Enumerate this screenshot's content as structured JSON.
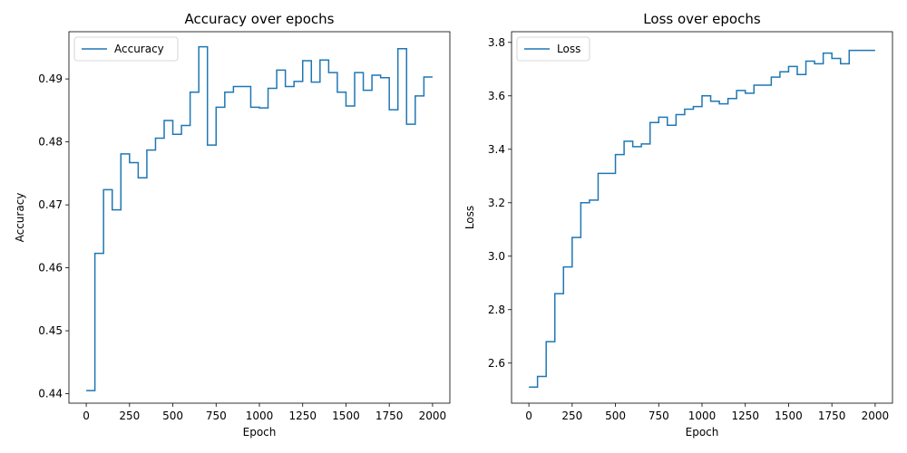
{
  "chart_data": [
    {
      "type": "line",
      "title": "Accuracy over epochs",
      "xlabel": "Epoch",
      "ylabel": "Accuracy",
      "xlim": [
        -100,
        2100
      ],
      "ylim": [
        0.4385,
        0.4975
      ],
      "xticks": [
        0,
        250,
        500,
        750,
        1000,
        1250,
        1500,
        1750,
        2000
      ],
      "yticks": [
        0.44,
        0.45,
        0.46,
        0.47,
        0.48,
        0.49
      ],
      "ytick_labels": [
        "0.44",
        "0.45",
        "0.46",
        "0.47",
        "0.48",
        "0.49"
      ],
      "legend": {
        "placement": "top-left"
      },
      "color": "#1f77b4",
      "series": [
        {
          "name": "Accuracy",
          "x": [
            0,
            50,
            100,
            150,
            200,
            250,
            300,
            350,
            400,
            450,
            500,
            550,
            600,
            650,
            700,
            750,
            800,
            850,
            900,
            950,
            1000,
            1050,
            1100,
            1150,
            1200,
            1250,
            1300,
            1350,
            1400,
            1450,
            1500,
            1550,
            1600,
            1650,
            1700,
            1750,
            1800,
            1850,
            1900,
            1950,
            2000
          ],
          "values": [
            0.4405,
            0.4623,
            0.4724,
            0.4692,
            0.4781,
            0.4767,
            0.4743,
            0.4787,
            0.4806,
            0.4834,
            0.4812,
            0.4826,
            0.4879,
            0.4951,
            0.4795,
            0.4855,
            0.4879,
            0.4888,
            0.4888,
            0.4855,
            0.4854,
            0.4885,
            0.4914,
            0.4888,
            0.4896,
            0.4929,
            0.4895,
            0.493,
            0.491,
            0.4879,
            0.4857,
            0.491,
            0.4882,
            0.4906,
            0.4902,
            0.4851,
            0.4948,
            0.4828,
            0.4873,
            0.4903,
            0.4903
          ]
        }
      ]
    },
    {
      "type": "line",
      "title": "Loss over epochs",
      "xlabel": "Epoch",
      "ylabel": "Loss",
      "xlim": [
        -100,
        2100
      ],
      "ylim": [
        2.45,
        3.84
      ],
      "xticks": [
        0,
        250,
        500,
        750,
        1000,
        1250,
        1500,
        1750,
        2000
      ],
      "yticks": [
        2.6,
        2.8,
        3.0,
        3.2,
        3.4,
        3.6,
        3.8
      ],
      "ytick_labels": [
        "2.6",
        "2.8",
        "3.0",
        "3.2",
        "3.4",
        "3.6",
        "3.8"
      ],
      "legend": {
        "placement": "top-left"
      },
      "color": "#1f77b4",
      "series": [
        {
          "name": "Loss",
          "x": [
            0,
            50,
            100,
            150,
            200,
            250,
            300,
            350,
            400,
            450,
            500,
            550,
            600,
            650,
            700,
            750,
            800,
            850,
            900,
            950,
            1000,
            1050,
            1100,
            1150,
            1200,
            1250,
            1300,
            1350,
            1400,
            1450,
            1500,
            1550,
            1600,
            1650,
            1700,
            1750,
            1800,
            1850,
            1900,
            1950,
            2000
          ],
          "values": [
            2.51,
            2.55,
            2.68,
            2.86,
            2.96,
            3.07,
            3.2,
            3.21,
            3.31,
            3.31,
            3.38,
            3.43,
            3.41,
            3.42,
            3.5,
            3.52,
            3.49,
            3.53,
            3.55,
            3.56,
            3.6,
            3.58,
            3.57,
            3.59,
            3.62,
            3.61,
            3.64,
            3.64,
            3.67,
            3.69,
            3.71,
            3.68,
            3.73,
            3.72,
            3.76,
            3.74,
            3.72,
            3.77,
            3.77,
            3.77,
            3.77
          ]
        }
      ]
    }
  ]
}
